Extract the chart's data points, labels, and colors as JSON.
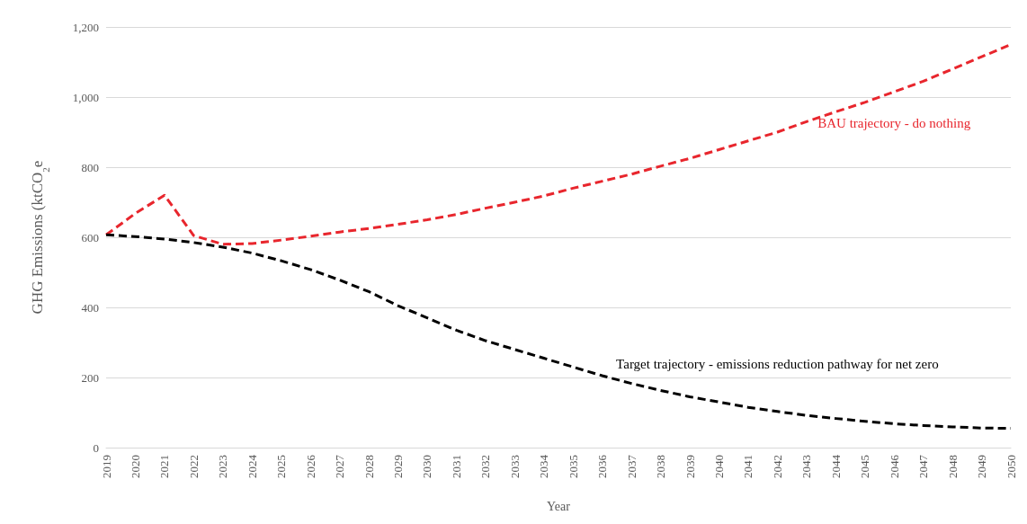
{
  "chart_data": {
    "type": "line",
    "xlabel": "Year",
    "ylabel": "GHG Emissions (ktCO$_{2}$e",
    "categories": [
      "2019",
      "2020",
      "2021",
      "2022",
      "2023",
      "2024",
      "2025",
      "2026",
      "2027",
      "2028",
      "2029",
      "2030",
      "2031",
      "2032",
      "2033",
      "2034",
      "2035",
      "2036",
      "2037",
      "2038",
      "2039",
      "2040",
      "2041",
      "2042",
      "2043",
      "2044",
      "2045",
      "2046",
      "2047",
      "2048",
      "2049",
      "2050"
    ],
    "series": [
      {
        "name": "BAU trajectory - do nothing",
        "color": "#e8262d",
        "values": [
          607,
          668,
          720,
          605,
          580,
          582,
          592,
          603,
          615,
          625,
          637,
          650,
          665,
          683,
          700,
          718,
          740,
          760,
          780,
          803,
          825,
          850,
          875,
          900,
          930,
          958,
          985,
          1015,
          1045,
          1080,
          1115,
          1150
        ]
      },
      {
        "name": "Target trajectory - emissions reduction pathway for net zero",
        "color": "#000000",
        "values": [
          607,
          602,
          595,
          585,
          572,
          555,
          533,
          508,
          478,
          445,
          405,
          370,
          335,
          305,
          280,
          255,
          230,
          205,
          183,
          163,
          145,
          130,
          115,
          103,
          92,
          83,
          75,
          68,
          63,
          59,
          56,
          55
        ]
      }
    ],
    "ylim": [
      0,
      1200
    ],
    "yticks": [
      {
        "value": 0,
        "label": "0"
      },
      {
        "value": 200,
        "label": "200"
      },
      {
        "value": 400,
        "label": "400"
      },
      {
        "value": 600,
        "label": "600"
      },
      {
        "value": 800,
        "label": "800"
      },
      {
        "value": 1000,
        "label": "1,000"
      },
      {
        "value": 1200,
        "label": "1,200"
      }
    ],
    "grid": "y",
    "legend": false,
    "line_style": "dashed",
    "marker": "none"
  }
}
